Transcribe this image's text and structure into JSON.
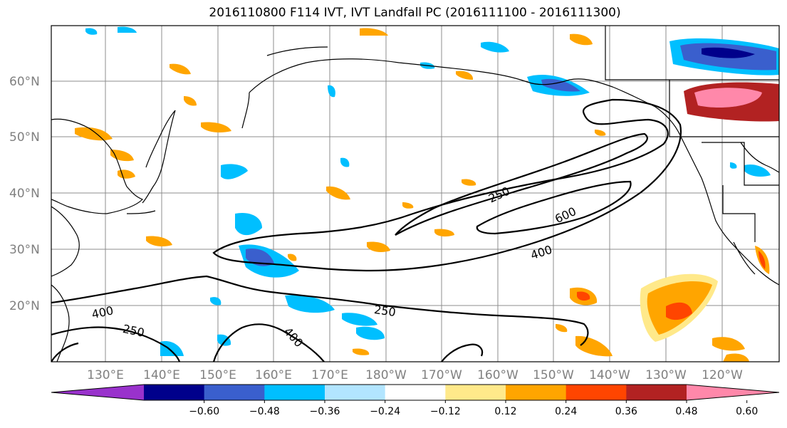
{
  "title": "2016110800 F114 IVT, IVT Landfall PC (2016111100 - 2016111300)",
  "lat_labels": [
    "60°N",
    "50°N",
    "40°N",
    "30°N",
    "20°N"
  ],
  "lon_labels": [
    "130°E",
    "140°E",
    "150°E",
    "160°E",
    "170°E",
    "180°W",
    "170°W",
    "160°W",
    "150°W",
    "140°W",
    "130°W",
    "120°W"
  ],
  "colorbar": {
    "colors": [
      "#9932cc",
      "#00008b",
      "#3a5fcd",
      "#00bfff",
      "#b2e5ff",
      "#ffffff",
      "#ffe98a",
      "#ffa500",
      "#ff4500",
      "#b22222",
      "#ff88aa"
    ],
    "ticks": [
      "−0.60",
      "−0.48",
      "−0.36",
      "−0.24",
      "−0.12",
      "0.12",
      "0.24",
      "0.36",
      "0.48",
      "0.60"
    ]
  },
  "contour_labels": [
    "250",
    "600",
    "400",
    "400",
    "250",
    "250",
    "400"
  ],
  "colors": {
    "positive": "#ffa500",
    "positive_high": "#ff4500",
    "negative": "#00bfff",
    "negative_strong": "#3a5fcd",
    "max": "#ff88aa",
    "dark_red": "#b22222",
    "grid": "#808080"
  }
}
